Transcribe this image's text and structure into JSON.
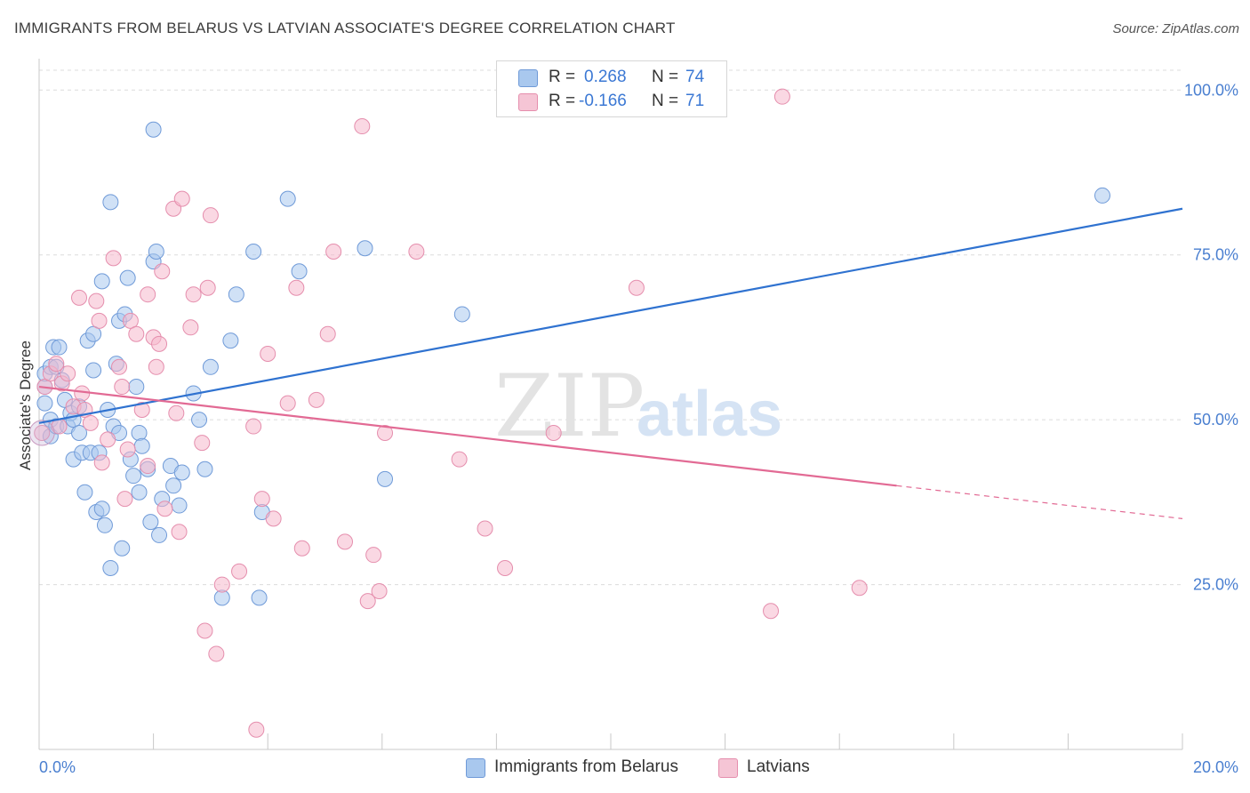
{
  "title": "IMMIGRANTS FROM BELARUS VS LATVIAN ASSOCIATE'S DEGREE CORRELATION CHART",
  "source": "Source: ZipAtlas.com",
  "watermark": {
    "zip": "ZIP",
    "atlas": "atlas"
  },
  "legend": {
    "rows": [
      {
        "r_label": "R =",
        "r_value": "0.268",
        "n_label": "N =",
        "n_value": "74"
      },
      {
        "r_label": "R =",
        "r_value": "-0.166",
        "n_label": "N =",
        "n_value": "71"
      }
    ]
  },
  "bottom_legend": [
    "Immigrants from Belarus",
    "Latvians"
  ],
  "colors": {
    "blue_fill": "#a9c8ee",
    "blue_stroke": "#6f9ad8",
    "blue_line": "#2f72d0",
    "pink_fill": "#f5b8cc",
    "pink_stroke": "#e58ead",
    "pink_line": "#e26a94",
    "grid": "#dcdcdc",
    "tick_text": "#4a7fd0"
  },
  "chart_data": {
    "type": "scatter",
    "title": "IMMIGRANTS FROM BELARUS VS LATVIAN ASSOCIATE'S DEGREE CORRELATION CHART",
    "xlabel": "",
    "ylabel": "Associate's Degree",
    "xlim": [
      0,
      20
    ],
    "ylim": [
      0,
      103
    ],
    "x_tick_labels": [
      "0.0%",
      "20.0%"
    ],
    "y_ticks": [
      25,
      50,
      75,
      100
    ],
    "y_tick_labels": [
      "25.0%",
      "50.0%",
      "75.0%",
      "100.0%"
    ],
    "grid": true,
    "series": [
      {
        "name": "Immigrants from Belarus",
        "r": 0.268,
        "n": 74,
        "trend": {
          "x": [
            0,
            20
          ],
          "y": [
            49.5,
            82
          ]
        },
        "points": [
          [
            0.1,
            52.5
          ],
          [
            0.1,
            55
          ],
          [
            0.1,
            57
          ],
          [
            0.2,
            50
          ],
          [
            0.2,
            47.5
          ],
          [
            0.2,
            58
          ],
          [
            0.25,
            61
          ],
          [
            0.3,
            58
          ],
          [
            0.3,
            49
          ],
          [
            0.35,
            61
          ],
          [
            0.4,
            56
          ],
          [
            0.45,
            53
          ],
          [
            0.5,
            49
          ],
          [
            0.55,
            51
          ],
          [
            0.6,
            44
          ],
          [
            0.6,
            50
          ],
          [
            0.7,
            52
          ],
          [
            0.7,
            48
          ],
          [
            0.75,
            45
          ],
          [
            0.8,
            39
          ],
          [
            0.85,
            62
          ],
          [
            0.9,
            45
          ],
          [
            0.95,
            57.5
          ],
          [
            0.95,
            63
          ],
          [
            1.0,
            36
          ],
          [
            1.05,
            45
          ],
          [
            1.1,
            36.5
          ],
          [
            1.1,
            71
          ],
          [
            1.15,
            34
          ],
          [
            1.2,
            51.5
          ],
          [
            1.25,
            27.5
          ],
          [
            1.25,
            83
          ],
          [
            1.3,
            49
          ],
          [
            1.35,
            58.5
          ],
          [
            1.4,
            65
          ],
          [
            1.4,
            48
          ],
          [
            1.45,
            30.5
          ],
          [
            1.5,
            66
          ],
          [
            1.55,
            71.5
          ],
          [
            1.6,
            44
          ],
          [
            1.65,
            41.5
          ],
          [
            1.7,
            55
          ],
          [
            1.75,
            39
          ],
          [
            1.75,
            48
          ],
          [
            1.8,
            46
          ],
          [
            1.9,
            42.5
          ],
          [
            1.95,
            34.5
          ],
          [
            2.0,
            74
          ],
          [
            2.0,
            94
          ],
          [
            2.05,
            75.5
          ],
          [
            2.1,
            32.5
          ],
          [
            2.15,
            38
          ],
          [
            2.3,
            43
          ],
          [
            2.35,
            40
          ],
          [
            2.45,
            37
          ],
          [
            2.5,
            42
          ],
          [
            2.7,
            54
          ],
          [
            2.8,
            50
          ],
          [
            2.9,
            42.5
          ],
          [
            3.0,
            58
          ],
          [
            3.2,
            23
          ],
          [
            3.35,
            62
          ],
          [
            3.45,
            69
          ],
          [
            3.75,
            75.5
          ],
          [
            3.85,
            23
          ],
          [
            3.9,
            36
          ],
          [
            4.35,
            83.5
          ],
          [
            4.55,
            72.5
          ],
          [
            5.7,
            76
          ],
          [
            6.05,
            41
          ],
          [
            7.4,
            66
          ],
          [
            18.6,
            84
          ]
        ]
      },
      {
        "name": "Latvians",
        "r": -0.166,
        "n": 71,
        "trend": {
          "x": [
            0,
            15
          ],
          "y": [
            55,
            40
          ]
        },
        "trend_dashed": {
          "x": [
            15,
            20
          ],
          "y": [
            40,
            35
          ]
        },
        "points": [
          [
            0.05,
            48
          ],
          [
            0.1,
            55
          ],
          [
            0.2,
            57
          ],
          [
            0.3,
            58.5
          ],
          [
            0.35,
            49
          ],
          [
            0.4,
            55.5
          ],
          [
            0.5,
            57
          ],
          [
            0.6,
            52
          ],
          [
            0.7,
            68.5
          ],
          [
            0.75,
            54
          ],
          [
            0.8,
            51.5
          ],
          [
            0.9,
            49.5
          ],
          [
            1.0,
            68
          ],
          [
            1.05,
            65
          ],
          [
            1.1,
            43.5
          ],
          [
            1.2,
            47
          ],
          [
            1.3,
            74.5
          ],
          [
            1.4,
            58
          ],
          [
            1.45,
            55
          ],
          [
            1.5,
            38
          ],
          [
            1.55,
            45.5
          ],
          [
            1.6,
            65
          ],
          [
            1.7,
            63
          ],
          [
            1.8,
            51.5
          ],
          [
            1.9,
            43
          ],
          [
            1.9,
            69
          ],
          [
            2.0,
            62.5
          ],
          [
            2.05,
            58
          ],
          [
            2.1,
            61.5
          ],
          [
            2.15,
            72.5
          ],
          [
            2.2,
            36.5
          ],
          [
            2.35,
            82
          ],
          [
            2.4,
            51
          ],
          [
            2.45,
            33
          ],
          [
            2.5,
            83.5
          ],
          [
            2.65,
            64
          ],
          [
            2.7,
            69
          ],
          [
            2.85,
            46.5
          ],
          [
            2.9,
            18
          ],
          [
            2.95,
            70
          ],
          [
            3.0,
            81
          ],
          [
            3.1,
            14.5
          ],
          [
            3.2,
            25
          ],
          [
            3.5,
            27
          ],
          [
            3.75,
            49
          ],
          [
            3.8,
            3
          ],
          [
            3.9,
            38
          ],
          [
            4.0,
            60
          ],
          [
            4.1,
            35
          ],
          [
            4.35,
            52.5
          ],
          [
            4.5,
            70
          ],
          [
            4.6,
            30.5
          ],
          [
            4.85,
            53
          ],
          [
            5.05,
            63
          ],
          [
            5.15,
            75.5
          ],
          [
            5.35,
            31.5
          ],
          [
            5.65,
            94.5
          ],
          [
            5.75,
            22.5
          ],
          [
            5.85,
            29.5
          ],
          [
            5.95,
            24
          ],
          [
            6.05,
            48
          ],
          [
            6.6,
            75.5
          ],
          [
            7.35,
            44
          ],
          [
            7.8,
            33.5
          ],
          [
            8.15,
            27.5
          ],
          [
            9.0,
            48
          ],
          [
            10.45,
            70
          ],
          [
            12.8,
            21
          ],
          [
            13.0,
            99
          ],
          [
            14.35,
            24.5
          ]
        ]
      }
    ]
  }
}
